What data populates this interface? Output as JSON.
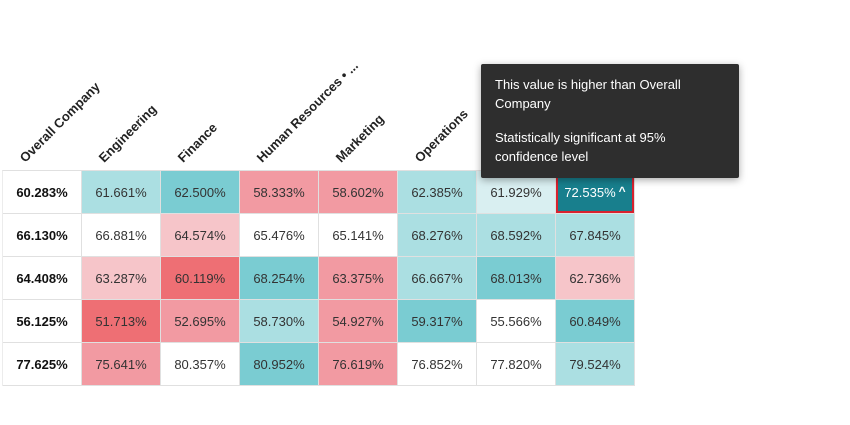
{
  "tooltip": {
    "line1": "This value is higher than Overall Company",
    "line2": "Statistically significant at 95% confidence level"
  },
  "columns": [
    {
      "label": "Overall Company"
    },
    {
      "label": "Engineering"
    },
    {
      "label": "Finance"
    },
    {
      "label": "Human Resources • ..."
    },
    {
      "label": "Marketing"
    },
    {
      "label": "Operations"
    },
    {
      "label": ""
    },
    {
      "label": ""
    }
  ],
  "table": {
    "rows": [
      {
        "cells": [
          {
            "value": "60.283%",
            "tone": "plain"
          },
          {
            "value": "61.661%",
            "tone": "teal-light"
          },
          {
            "value": "62.500%",
            "tone": "teal-mid"
          },
          {
            "value": "58.333%",
            "tone": "pink-mid"
          },
          {
            "value": "58.602%",
            "tone": "pink-mid"
          },
          {
            "value": "62.385%",
            "tone": "teal-light"
          },
          {
            "value": "61.929%",
            "tone": "teal-faint"
          },
          {
            "value": "72.535%",
            "tone": "teal-dark",
            "selected": true,
            "caret": "^"
          }
        ]
      },
      {
        "cells": [
          {
            "value": "66.130%",
            "tone": "plain"
          },
          {
            "value": "66.881%",
            "tone": "white"
          },
          {
            "value": "64.574%",
            "tone": "pink-light"
          },
          {
            "value": "65.476%",
            "tone": "white"
          },
          {
            "value": "65.141%",
            "tone": "white"
          },
          {
            "value": "68.276%",
            "tone": "teal-light"
          },
          {
            "value": "68.592%",
            "tone": "teal-light"
          },
          {
            "value": "67.845%",
            "tone": "teal-light"
          }
        ]
      },
      {
        "cells": [
          {
            "value": "64.408%",
            "tone": "plain"
          },
          {
            "value": "63.287%",
            "tone": "pink-light"
          },
          {
            "value": "60.119%",
            "tone": "red"
          },
          {
            "value": "68.254%",
            "tone": "teal-mid"
          },
          {
            "value": "63.375%",
            "tone": "pink-mid"
          },
          {
            "value": "66.667%",
            "tone": "teal-light"
          },
          {
            "value": "68.013%",
            "tone": "teal-mid"
          },
          {
            "value": "62.736%",
            "tone": "pink-light"
          }
        ]
      },
      {
        "cells": [
          {
            "value": "56.125%",
            "tone": "plain"
          },
          {
            "value": "51.713%",
            "tone": "red"
          },
          {
            "value": "52.695%",
            "tone": "pink-mid"
          },
          {
            "value": "58.730%",
            "tone": "teal-light"
          },
          {
            "value": "54.927%",
            "tone": "pink-mid"
          },
          {
            "value": "59.317%",
            "tone": "teal-mid"
          },
          {
            "value": "55.566%",
            "tone": "white"
          },
          {
            "value": "60.849%",
            "tone": "teal-mid"
          }
        ]
      },
      {
        "cells": [
          {
            "value": "77.625%",
            "tone": "plain"
          },
          {
            "value": "75.641%",
            "tone": "pink-mid"
          },
          {
            "value": "80.357%",
            "tone": "white"
          },
          {
            "value": "80.952%",
            "tone": "teal-mid"
          },
          {
            "value": "76.619%",
            "tone": "pink-mid"
          },
          {
            "value": "76.852%",
            "tone": "white"
          },
          {
            "value": "77.820%",
            "tone": "white"
          },
          {
            "value": "79.524%",
            "tone": "teal-light"
          }
        ]
      }
    ]
  },
  "colors": {
    "teal_dark": "#187f8d",
    "teal_mid": "#7accd2",
    "teal_light": "#abdfe2",
    "teal_faint": "#d9eff1",
    "pink_light": "#f6c5c9",
    "pink_mid": "#f29aa2",
    "red": "#ee6f74",
    "selection_border": "#d8222f",
    "tooltip_bg": "#2e2e2e"
  },
  "chart_data": {
    "type": "heatmap",
    "columns": [
      "Overall Company",
      "Engineering",
      "Finance",
      "Human Resources • ...",
      "Marketing",
      "Operations",
      "",
      ""
    ],
    "rows": [
      [
        60.283,
        61.661,
        62.5,
        58.333,
        58.602,
        62.385,
        61.929,
        72.535
      ],
      [
        66.13,
        66.881,
        64.574,
        65.476,
        65.141,
        68.276,
        68.592,
        67.845
      ],
      [
        64.408,
        63.287,
        60.119,
        68.254,
        63.375,
        66.667,
        68.013,
        62.736
      ],
      [
        56.125,
        51.713,
        52.695,
        58.73,
        54.927,
        59.317,
        55.566,
        60.849
      ],
      [
        77.625,
        75.641,
        80.357,
        80.952,
        76.619,
        76.852,
        77.82,
        79.524
      ]
    ],
    "unit": "%",
    "selected_cell": {
      "row": 0,
      "col": 7,
      "value": 72.535,
      "marker": "^"
    },
    "legend": "teal = higher than Overall Company (statistically significant), pink/red = lower, white = not significant",
    "legend_position": "none"
  }
}
